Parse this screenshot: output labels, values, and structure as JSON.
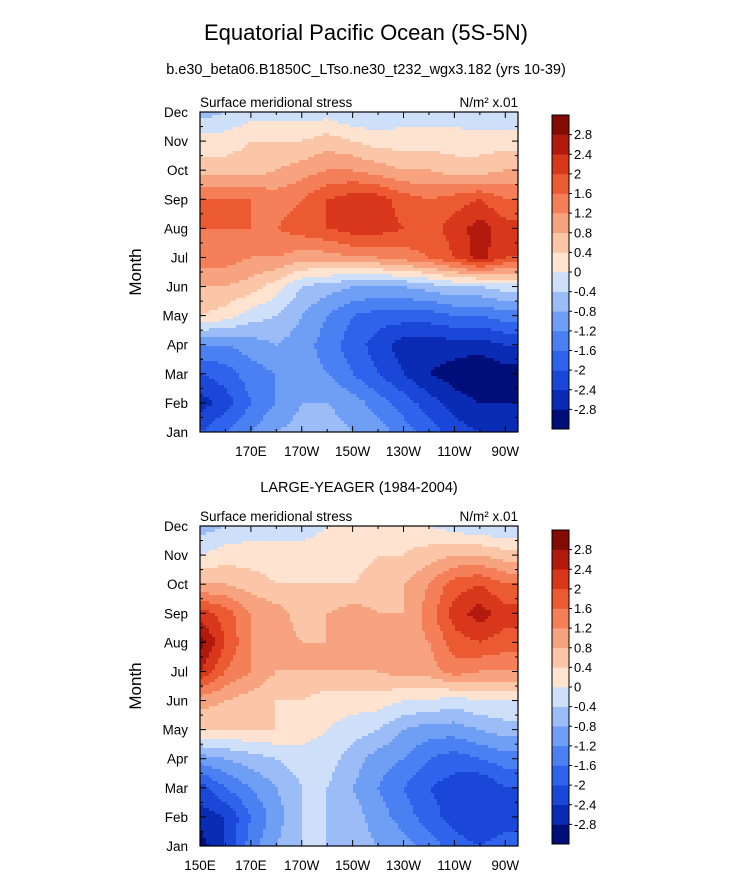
{
  "title": "Equatorial Pacific Ocean (5S-5N)",
  "subtitle": "b.e30_beta06.B1850C_LTso.ne30_t232_wgx3.182 (yrs 10-39)",
  "chart_data": [
    {
      "type": "heatmap",
      "title": "",
      "left_label": "Surface meridional stress",
      "units": "N/m² x.01",
      "ylabel": "Month",
      "xlabel": "",
      "x_ticks": [
        "170E",
        "170W",
        "150W",
        "130W",
        "110W",
        "90W"
      ],
      "x_tick_values": [
        170,
        190,
        210,
        230,
        250,
        270
      ],
      "xlim": [
        150,
        275
      ],
      "y_ticks": [
        "Jan",
        "Feb",
        "Mar",
        "Apr",
        "May",
        "Jun",
        "Jul",
        "Aug",
        "Sep",
        "Oct",
        "Nov",
        "Dec"
      ],
      "colorbar_labels": [
        "-2.8",
        "-2.4",
        "-2",
        "-1.6",
        "-1.2",
        "-0.8",
        "-0.4",
        "0",
        "0.4",
        "0.8",
        "1.2",
        "1.6",
        "2",
        "2.4",
        "2.8"
      ],
      "lon": [
        150,
        160,
        170,
        180,
        190,
        200,
        210,
        220,
        230,
        240,
        250,
        260,
        270
      ],
      "values": [
        [
          -2.0,
          -1.6,
          -1.2,
          -0.8,
          -0.6,
          -0.6,
          -0.8,
          -1.0,
          -1.4,
          -1.8,
          -2.2,
          -2.4,
          -2.4
        ],
        [
          -2.6,
          -2.2,
          -1.6,
          -1.2,
          -0.8,
          -0.8,
          -1.0,
          -1.4,
          -1.8,
          -2.2,
          -2.6,
          -2.8,
          -2.8
        ],
        [
          -2.0,
          -1.8,
          -1.4,
          -1.2,
          -1.0,
          -1.2,
          -1.6,
          -2.0,
          -2.4,
          -2.8,
          -3.0,
          -3.2,
          -3.0
        ],
        [
          -1.2,
          -1.2,
          -1.0,
          -0.8,
          -1.0,
          -1.4,
          -1.8,
          -2.2,
          -2.6,
          -2.6,
          -2.6,
          -2.6,
          -2.4
        ],
        [
          0.4,
          0.2,
          -0.2,
          -0.4,
          -0.8,
          -1.2,
          -1.6,
          -1.8,
          -1.8,
          -1.8,
          -1.6,
          -1.6,
          -1.4
        ],
        [
          0.8,
          0.8,
          0.6,
          0.2,
          -0.4,
          -0.6,
          -0.8,
          -0.8,
          -0.8,
          -0.6,
          -0.4,
          -0.4,
          -0.2
        ],
        [
          1.4,
          1.4,
          1.2,
          1.2,
          1.0,
          1.0,
          1.2,
          1.2,
          1.4,
          1.6,
          2.0,
          2.6,
          2.0
        ],
        [
          1.6,
          1.6,
          1.6,
          1.6,
          1.8,
          2.0,
          2.2,
          2.2,
          2.0,
          1.8,
          2.2,
          2.6,
          2.2
        ],
        [
          1.6,
          1.6,
          1.6,
          1.4,
          1.6,
          2.0,
          2.2,
          2.2,
          1.8,
          1.6,
          1.8,
          2.0,
          1.6
        ],
        [
          0.6,
          0.6,
          0.6,
          0.8,
          1.0,
          1.2,
          1.2,
          1.0,
          0.8,
          0.8,
          0.6,
          0.6,
          0.8
        ],
        [
          0.2,
          0.2,
          0.4,
          0.4,
          0.4,
          0.6,
          0.4,
          0.2,
          0.2,
          0.2,
          0.2,
          0.2,
          0.2
        ],
        [
          -0.6,
          -0.4,
          -0.2,
          -0.2,
          -0.2,
          -0.2,
          -0.4,
          -0.4,
          -0.2,
          -0.2,
          -0.2,
          -0.4,
          -0.4
        ]
      ]
    },
    {
      "type": "heatmap",
      "title": "LARGE-YEAGER (1984-2004)",
      "left_label": "Surface meridional stress",
      "units": "N/m² x.01",
      "ylabel": "Month",
      "xlabel": "",
      "x_ticks": [
        "150E",
        "170E",
        "170W",
        "150W",
        "130W",
        "110W",
        "90W"
      ],
      "x_tick_values": [
        150,
        170,
        190,
        210,
        230,
        250,
        270
      ],
      "xlim": [
        150,
        275
      ],
      "y_ticks": [
        "Jan",
        "Feb",
        "Mar",
        "Apr",
        "May",
        "Jun",
        "Jul",
        "Aug",
        "Sep",
        "Oct",
        "Nov",
        "Dec"
      ],
      "colorbar_labels": [
        "-2.8",
        "-2.4",
        "-2",
        "-1.6",
        "-1.2",
        "-0.8",
        "-0.4",
        "0",
        "0.4",
        "0.8",
        "1.2",
        "1.6",
        "2",
        "2.4",
        "2.8"
      ],
      "lon": [
        150,
        160,
        170,
        180,
        190,
        200,
        210,
        220,
        230,
        240,
        250,
        260,
        270
      ],
      "values": [
        [
          -3.0,
          -2.4,
          -1.4,
          -0.8,
          -0.4,
          -0.4,
          -0.6,
          -0.8,
          -1.0,
          -1.4,
          -1.8,
          -2.0,
          -1.8
        ],
        [
          -2.6,
          -2.4,
          -1.6,
          -1.0,
          -0.4,
          -0.4,
          -0.6,
          -1.0,
          -1.4,
          -1.8,
          -2.2,
          -2.4,
          -2.2
        ],
        [
          -2.2,
          -1.6,
          -1.2,
          -0.8,
          -0.4,
          -0.4,
          -0.8,
          -1.2,
          -1.6,
          -2.0,
          -2.2,
          -2.4,
          -2.0
        ],
        [
          -1.0,
          -0.8,
          -0.6,
          -0.4,
          -0.2,
          -0.2,
          -0.6,
          -1.0,
          -1.2,
          -1.6,
          -1.8,
          -1.6,
          -1.4
        ],
        [
          0.4,
          0.4,
          0.4,
          0.4,
          0.2,
          0.0,
          -0.2,
          -0.4,
          -0.8,
          -1.0,
          -1.0,
          -0.8,
          -0.6
        ],
        [
          1.0,
          0.8,
          0.6,
          0.4,
          0.4,
          0.2,
          0.2,
          0.2,
          0.0,
          0.0,
          -0.2,
          0.0,
          0.0
        ],
        [
          2.4,
          1.6,
          1.2,
          0.8,
          0.8,
          0.8,
          0.8,
          0.8,
          1.0,
          1.0,
          1.4,
          1.2,
          1.2
        ],
        [
          3.0,
          2.0,
          1.2,
          1.0,
          0.8,
          0.8,
          1.0,
          1.2,
          1.0,
          1.2,
          1.8,
          2.0,
          1.8
        ],
        [
          2.2,
          1.8,
          1.2,
          1.0,
          0.6,
          0.8,
          1.0,
          0.8,
          0.8,
          1.4,
          2.2,
          2.6,
          2.2
        ],
        [
          0.8,
          0.8,
          0.6,
          0.4,
          0.4,
          0.4,
          0.4,
          0.6,
          0.8,
          1.2,
          1.8,
          2.0,
          1.6
        ],
        [
          0.0,
          0.2,
          0.2,
          0.2,
          0.2,
          0.2,
          0.2,
          0.4,
          0.4,
          0.6,
          0.8,
          0.8,
          0.6
        ],
        [
          -0.6,
          -0.4,
          -0.2,
          -0.2,
          -0.2,
          0.0,
          0.2,
          0.2,
          0.2,
          0.0,
          -0.2,
          -0.4,
          -0.4
        ]
      ]
    }
  ]
}
